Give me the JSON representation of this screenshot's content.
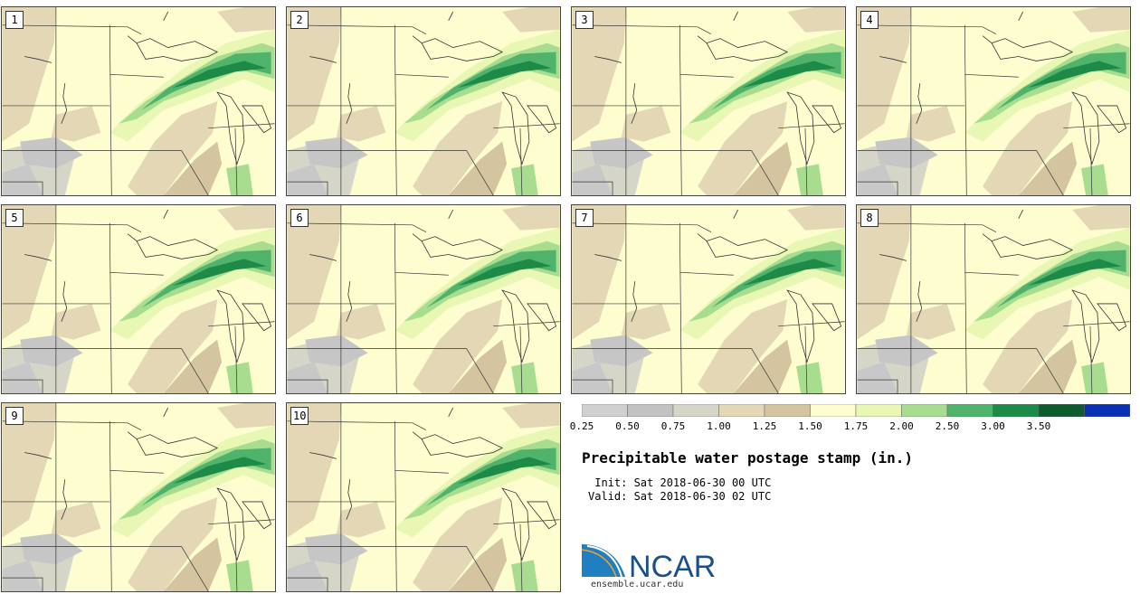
{
  "panels": [
    {
      "label": "1"
    },
    {
      "label": "2"
    },
    {
      "label": "3"
    },
    {
      "label": "4"
    },
    {
      "label": "5"
    },
    {
      "label": "6"
    },
    {
      "label": "7"
    },
    {
      "label": "8"
    },
    {
      "label": "9"
    },
    {
      "label": "10"
    }
  ],
  "colorbar": {
    "colors": [
      "#d0d0d0",
      "#c2c2c2",
      "#d6d6c8",
      "#e3d7b6",
      "#d4c4a0",
      "#fdfdd0",
      "#e8f7b3",
      "#a8dd90",
      "#4fb36b",
      "#1e8a47",
      "#0d5c2e",
      "#0a2fb5"
    ],
    "ticks": [
      "0.25",
      "0.50",
      "0.75",
      "1.00",
      "1.25",
      "1.50",
      "1.75",
      "2.00",
      "2.50",
      "3.00",
      "3.50"
    ]
  },
  "title": "Precipitable water postage stamp (in.)",
  "init": " Init: Sat 2018-06-30 00 UTC",
  "valid": "Valid: Sat 2018-06-30 02 UTC",
  "logo": {
    "text": "NCAR",
    "url": "ensemble.ucar.edu"
  }
}
